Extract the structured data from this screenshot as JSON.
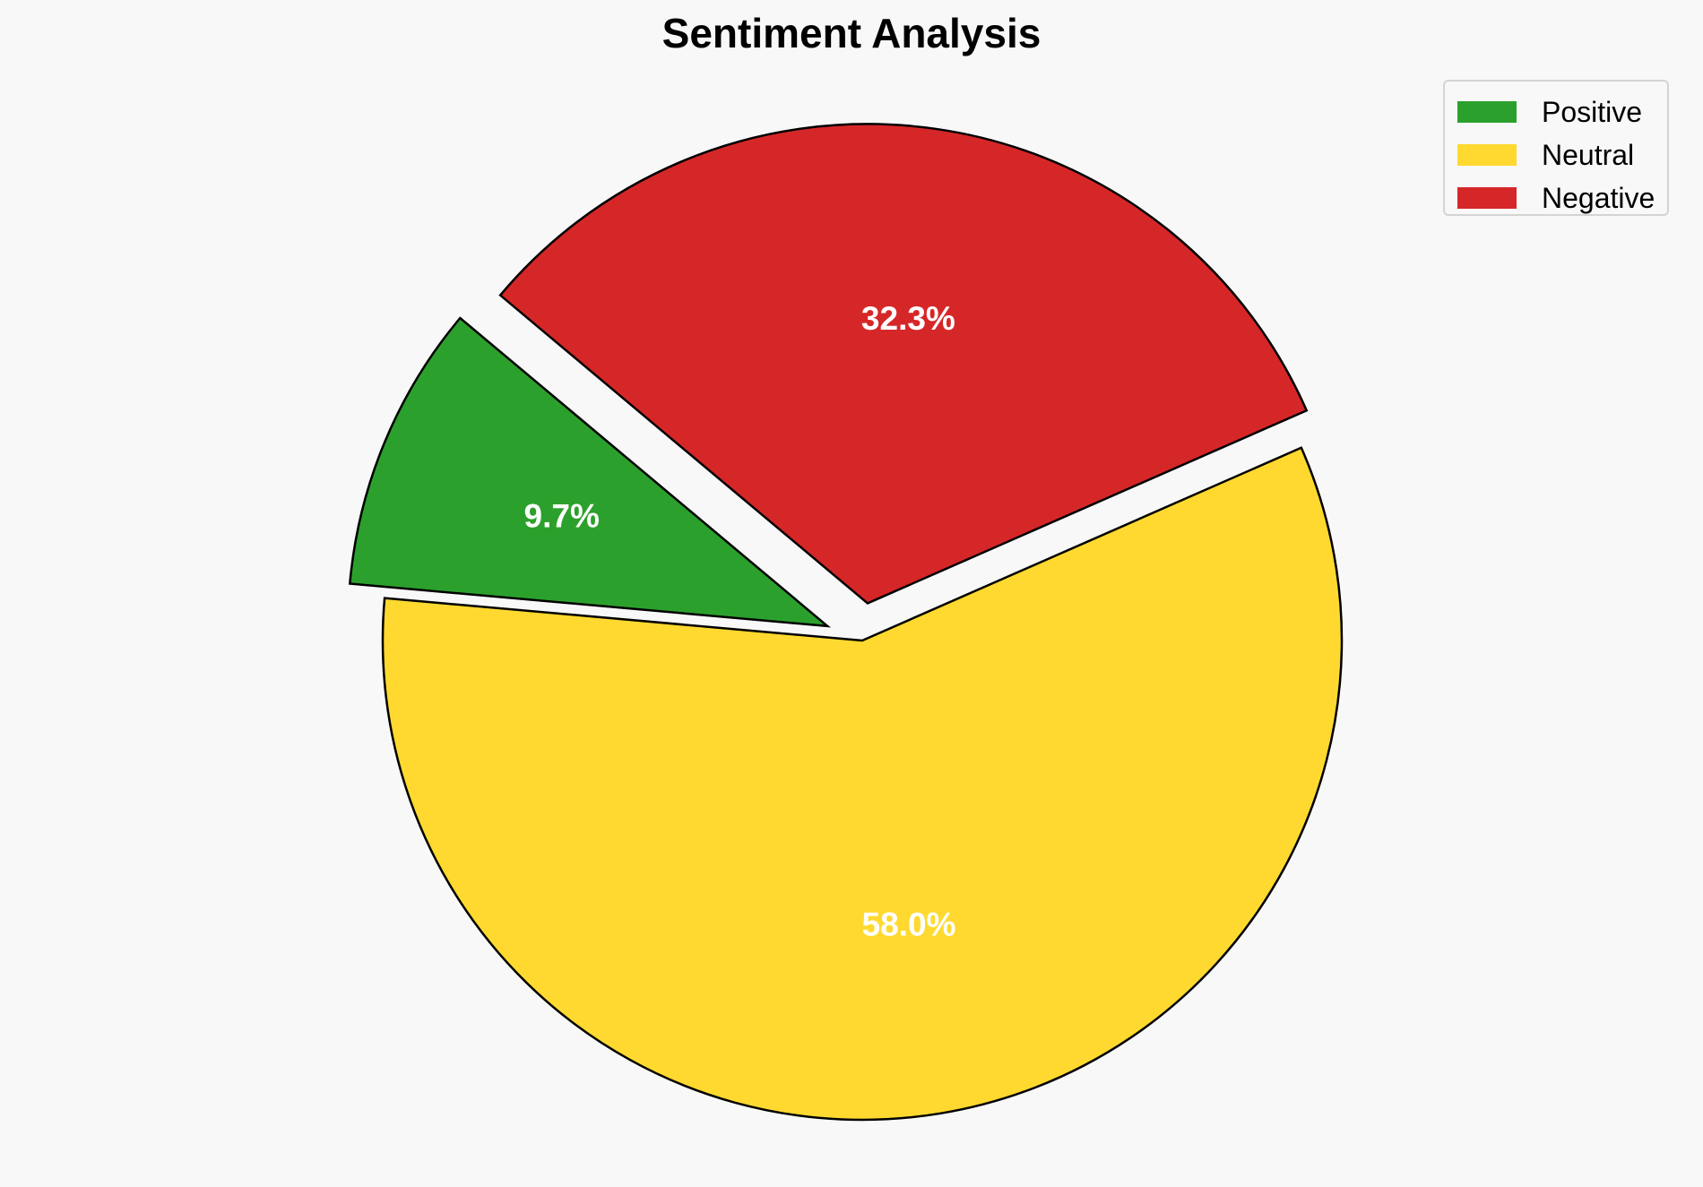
{
  "chart_data": {
    "type": "pie",
    "title": "Sentiment Analysis",
    "categories": [
      "Positive",
      "Neutral",
      "Negative"
    ],
    "values": [
      9.7,
      58.0,
      32.3
    ],
    "labels": [
      "9.7%",
      "58.0%",
      "32.3%"
    ],
    "colors": [
      "#2ca02c",
      "#ffd92f",
      "#d62728"
    ],
    "exploded": [
      true,
      false,
      true
    ],
    "legend_placement": "top-right",
    "edge_color": "#000000"
  }
}
